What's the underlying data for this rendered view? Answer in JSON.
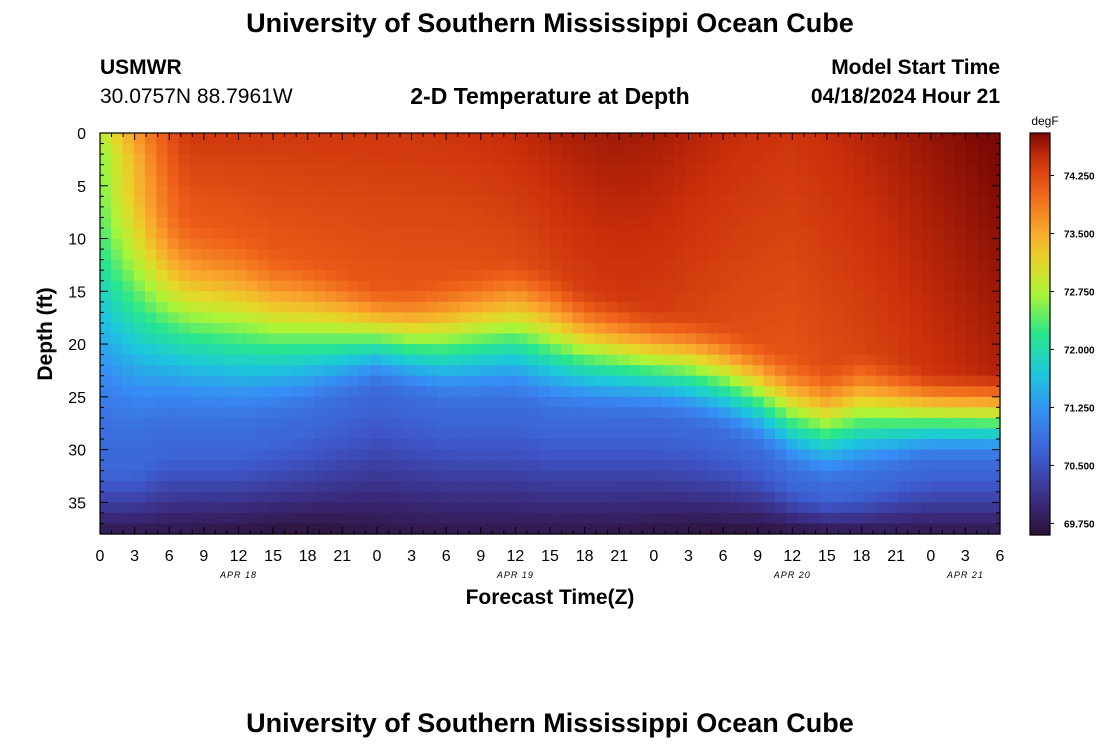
{
  "header": {
    "title": "University of Southern Mississippi Ocean Cube",
    "station": "USMWR",
    "coords": "30.0757N  88.7961W",
    "plot_title": "2-D Temperature at Depth",
    "model_label": "Model Start Time",
    "model_time": "04/18/2024 Hour 21"
  },
  "footer": {
    "title": "University of Southern Mississippi Ocean Cube"
  },
  "chart_data": {
    "type": "heatmap",
    "title": "2-D Temperature at Depth",
    "xlabel": "Forecast Time(Z)",
    "ylabel": "Depth (ft)",
    "x_range_hours_from_apr18_00Z": [
      0,
      78
    ],
    "x_tick_labels": [
      "0",
      "3",
      "6",
      "9",
      "12",
      "15",
      "18",
      "21",
      "0",
      "3",
      "6",
      "9",
      "12",
      "15",
      "18",
      "21",
      "0",
      "3",
      "6",
      "9",
      "12",
      "15",
      "18",
      "21",
      "0",
      "3",
      "6"
    ],
    "date_labels": [
      {
        "label": "APR 18",
        "hour": 12
      },
      {
        "label": "APR 19",
        "hour": 36
      },
      {
        "label": "APR 20",
        "hour": 60
      },
      {
        "label": "APR 21",
        "hour": 75
      }
    ],
    "y_range": [
      0,
      38
    ],
    "y_tick_labels": [
      "0",
      "5",
      "10",
      "15",
      "20",
      "25",
      "30",
      "35"
    ],
    "y_ticks": [
      0,
      5,
      10,
      15,
      20,
      25,
      30,
      35
    ],
    "colorbar": {
      "unit": "degF",
      "range": [
        69.6,
        74.8
      ],
      "tick_values": [
        69.75,
        70.5,
        71.25,
        72.0,
        72.75,
        73.5,
        74.25
      ],
      "tick_labels": [
        "69.750",
        "70.500",
        "71.250",
        "72.000",
        "72.750",
        "73.500",
        "74.250"
      ]
    },
    "warm_layer_bottom_ft": [
      {
        "hour": 0,
        "depth": 2
      },
      {
        "hour": 3,
        "depth": 3
      },
      {
        "hour": 6,
        "depth": 6
      },
      {
        "hour": 9,
        "depth": 7
      },
      {
        "hour": 12,
        "depth": 8
      },
      {
        "hour": 15,
        "depth": 10
      },
      {
        "hour": 18,
        "depth": 11
      },
      {
        "hour": 21,
        "depth": 12.5
      },
      {
        "hour": 24,
        "depth": 14
      },
      {
        "hour": 27,
        "depth": 14
      },
      {
        "hour": 30,
        "depth": 13
      },
      {
        "hour": 33,
        "depth": 12
      },
      {
        "hour": 36,
        "depth": 11
      },
      {
        "hour": 39,
        "depth": 12
      },
      {
        "hour": 42,
        "depth": 14
      },
      {
        "hour": 45,
        "depth": 15
      },
      {
        "hour": 48,
        "depth": 16
      },
      {
        "hour": 51,
        "depth": 16.5
      },
      {
        "hour": 54,
        "depth": 17.5
      },
      {
        "hour": 57,
        "depth": 19
      },
      {
        "hour": 60,
        "depth": 20.5
      },
      {
        "hour": 63,
        "depth": 21.5
      },
      {
        "hour": 66,
        "depth": 20
      },
      {
        "hour": 69,
        "depth": 21
      },
      {
        "hour": 72,
        "depth": 22
      },
      {
        "hour": 75,
        "depth": 22
      },
      {
        "hour": 78,
        "depth": 22
      }
    ],
    "thermocline_mid_ft": [
      {
        "hour": 0,
        "depth": 17
      },
      {
        "hour": 3,
        "depth": 17.5
      },
      {
        "hour": 6,
        "depth": 18
      },
      {
        "hour": 9,
        "depth": 18.5
      },
      {
        "hour": 12,
        "depth": 19
      },
      {
        "hour": 15,
        "depth": 19.5
      },
      {
        "hour": 18,
        "depth": 19.5
      },
      {
        "hour": 21,
        "depth": 19.5
      },
      {
        "hour": 24,
        "depth": 19.5
      },
      {
        "hour": 27,
        "depth": 20
      },
      {
        "hour": 30,
        "depth": 20
      },
      {
        "hour": 33,
        "depth": 19.5
      },
      {
        "hour": 36,
        "depth": 19
      },
      {
        "hour": 39,
        "depth": 20
      },
      {
        "hour": 42,
        "depth": 21
      },
      {
        "hour": 45,
        "depth": 21.5
      },
      {
        "hour": 48,
        "depth": 22
      },
      {
        "hour": 51,
        "depth": 22.5
      },
      {
        "hour": 54,
        "depth": 23.5
      },
      {
        "hour": 57,
        "depth": 25
      },
      {
        "hour": 60,
        "depth": 27
      },
      {
        "hour": 63,
        "depth": 28
      },
      {
        "hour": 66,
        "depth": 27
      },
      {
        "hour": 69,
        "depth": 27
      },
      {
        "hour": 72,
        "depth": 27
      },
      {
        "hour": 75,
        "depth": 27
      },
      {
        "hour": 78,
        "depth": 27
      }
    ]
  }
}
